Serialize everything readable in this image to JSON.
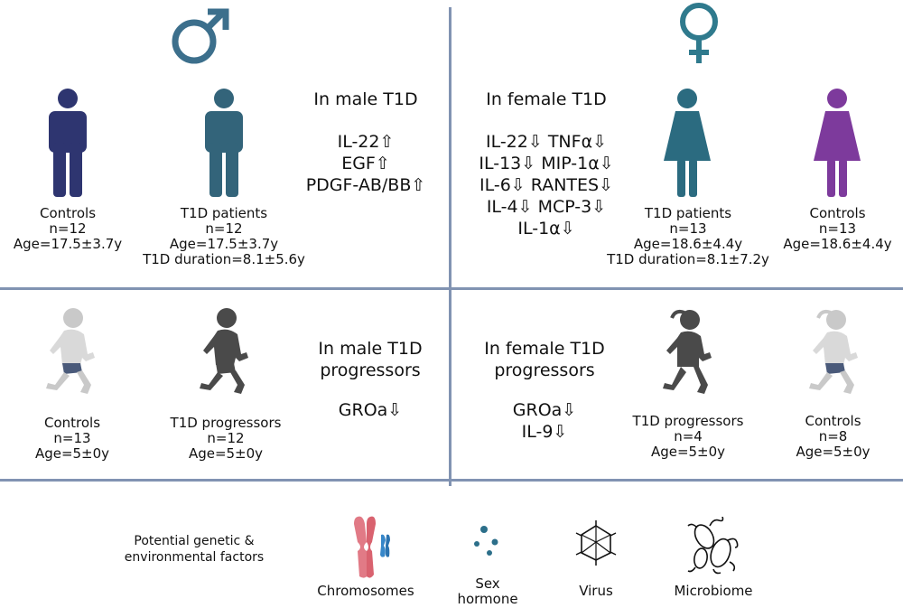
{
  "colors": {
    "divider": "#8193b2",
    "male_symbol": "#3c6f8c",
    "female_symbol": "#2f7a8d",
    "male_control": "#2e3570",
    "male_patient": "#33647a",
    "female_patient": "#2b6b80",
    "female_control": "#7d3a9c",
    "child_light": "#c9c9c9",
    "child_dark": "#4a4a4a",
    "chromosome_pink": "#e17a86",
    "chromosome_blue": "#3787c9",
    "hormone_dots": "#2c6f8a"
  },
  "male_adult": {
    "symbol_icon": "male-symbol",
    "heading": "In male T1D",
    "cytokines": [
      "IL-22⇧",
      "EGF⇧",
      "PDGF-AB/BB⇧"
    ],
    "controls": {
      "label": "Controls",
      "n": "n=12",
      "age": "Age=17.5±3.7y"
    },
    "patients": {
      "label": "T1D patients",
      "n": "n=12",
      "age": "Age=17.5±3.7y",
      "duration": "T1D duration=8.1±5.6y"
    }
  },
  "female_adult": {
    "symbol_icon": "female-symbol",
    "heading": "In female T1D",
    "cytokines": [
      "IL-22⇩ TNFα⇩",
      "IL-13⇩ MIP-1α⇩",
      "IL-6⇩ RANTES⇩",
      "IL-4⇩ MCP-3⇩",
      "IL-1α⇩"
    ],
    "patients": {
      "label": "T1D patients",
      "n": "n=13",
      "age": "Age=18.6±4.4y",
      "duration": "T1D duration=8.1±7.2y"
    },
    "controls": {
      "label": "Controls",
      "n": "n=13",
      "age": "Age=18.6±4.4y"
    }
  },
  "male_child": {
    "heading_line1": "In male T1D",
    "heading_line2": "progressors",
    "cytokines": [
      "GROa⇩"
    ],
    "controls": {
      "label": "Controls",
      "n": "n=13",
      "age": "Age=5±0y"
    },
    "progressors": {
      "label": "T1D progressors",
      "n": "n=12",
      "age": "Age=5±0y"
    }
  },
  "female_child": {
    "heading_line1": "In female T1D",
    "heading_line2": "progressors",
    "cytokines": [
      "GROa⇩",
      "IL-9⇩"
    ],
    "progressors": {
      "label": "T1D progressors",
      "n": "n=4",
      "age": "Age=5±0y"
    },
    "controls": {
      "label": "Controls",
      "n": "n=8",
      "age": "Age=5±0y"
    }
  },
  "factors": {
    "title_line1": "Potential genetic &",
    "title_line2": "environmental factors",
    "items": [
      {
        "icon": "chromosome-icon",
        "label": "Chromosomes"
      },
      {
        "icon": "hormone-icon",
        "label_line1": "Sex",
        "label_line2": "hormone"
      },
      {
        "icon": "virus-icon",
        "label": "Virus"
      },
      {
        "icon": "microbiome-icon",
        "label": "Microbiome"
      }
    ]
  }
}
